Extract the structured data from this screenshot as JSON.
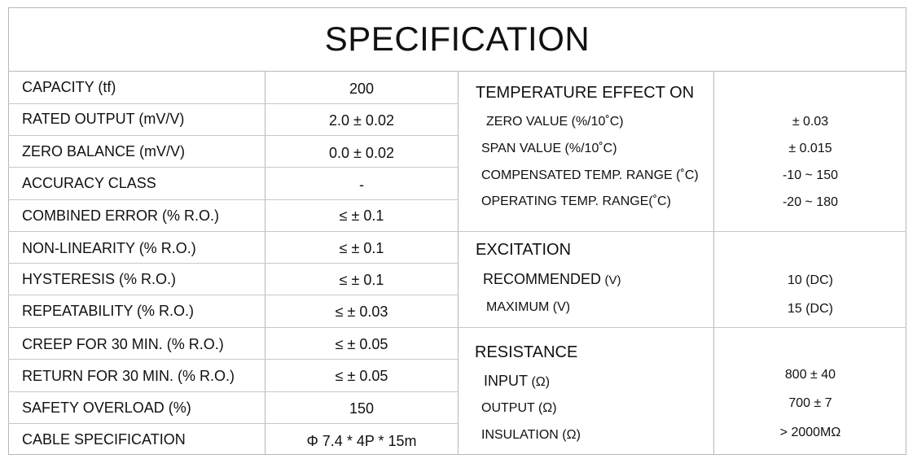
{
  "title": "SPECIFICATION",
  "left_rows": [
    {
      "label": "CAPACITY (tf)",
      "value": "200"
    },
    {
      "label": "RATED OUTPUT (mV/V)",
      "value": "2.0 ± 0.02"
    },
    {
      "label": "ZERO BALANCE (mV/V)",
      "value": "0.0 ± 0.02"
    },
    {
      "label": "ACCURACY CLASS",
      "value": "-"
    },
    {
      "label": "COMBINED ERROR (% R.O.)",
      "value": "≤ ± 0.1"
    },
    {
      "label": "NON-LINEARITY (% R.O.)",
      "value": "≤ ± 0.1"
    },
    {
      "label": "HYSTERESIS (% R.O.)",
      "value": "≤ ± 0.1"
    },
    {
      "label": "REPEATABILITY (% R.O.)",
      "value": "≤ ± 0.03"
    },
    {
      "label": "CREEP FOR 30 MIN. (% R.O.)",
      "value": "≤ ± 0.05"
    },
    {
      "label": "RETURN FOR 30 MIN. (% R.O.)",
      "value": "≤ ± 0.05"
    },
    {
      "label": "SAFETY OVERLOAD (%)",
      "value": "150"
    },
    {
      "label": "CABLE SPECIFICATION",
      "value": "Φ 7.4 * 4P * 15m"
    }
  ],
  "temperature": {
    "heading": "TEMPERATURE EFFECT ON",
    "rows": [
      {
        "label": "ZERO VALUE (%/10˚C)",
        "value": "± 0.03"
      },
      {
        "label": "SPAN VALUE (%/10˚C)",
        "value": "± 0.015"
      },
      {
        "label": "COMPENSATED TEMP. RANGE (˚C)",
        "value": "-10 ~ 150"
      },
      {
        "label": "OPERATING TEMP. RANGE(˚C)",
        "value": "-20 ~ 180"
      }
    ]
  },
  "excitation": {
    "heading": "EXCITATION",
    "rows": [
      {
        "label": "RECOMMENDED",
        "unit": "(V)",
        "value": "10 (DC)"
      },
      {
        "label": "MAXIMUM",
        "unit": "(V)",
        "value": "15 (DC)"
      }
    ]
  },
  "resistance": {
    "heading": "RESISTANCE",
    "rows": [
      {
        "label": "INPUT",
        "unit": "(Ω)",
        "value": "800 ± 40"
      },
      {
        "label": "OUTPUT",
        "unit": "(Ω)",
        "value": "700 ± 7"
      },
      {
        "label": "INSULATION",
        "unit": "(Ω)",
        "value": "> 2000MΩ"
      }
    ]
  }
}
